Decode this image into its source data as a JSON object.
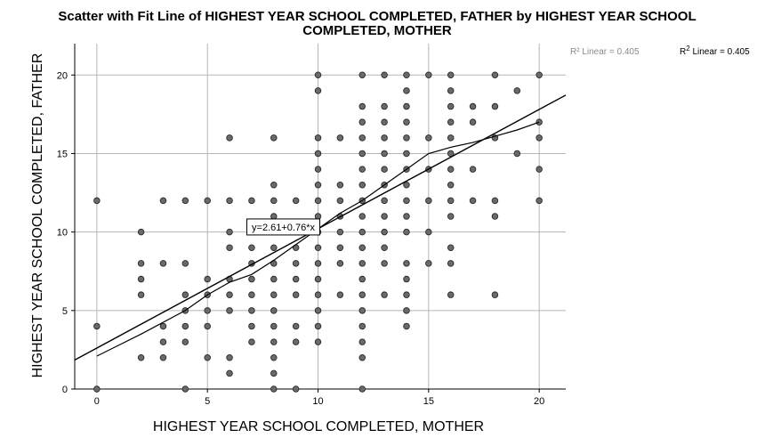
{
  "chart_data": {
    "type": "scatter",
    "title_line1": "Scatter with Fit Line of HIGHEST YEAR SCHOOL COMPLETED, FATHER by HIGHEST YEAR SCHOOL",
    "title_line2": "COMPLETED, MOTHER",
    "xlabel": "HIGHEST YEAR SCHOOL COMPLETED, MOTHER",
    "ylabel": "HIGHEST YEAR SCHOOL COMPLETED, FATHER",
    "xlim": [
      -1,
      21.2
    ],
    "ylim": [
      0,
      22
    ],
    "x_ticks": [
      0,
      5,
      10,
      15,
      20
    ],
    "y_ticks": [
      0,
      5,
      10,
      15,
      20
    ],
    "grid": true,
    "legend": {
      "faint_label": "R² Linear = 0.405",
      "label_prefix": "R",
      "label_sup": "2",
      "label_suffix": " Linear = 0.405",
      "position": "top-right"
    },
    "fit_line": {
      "equation_label": "y=2.61+0.76*x",
      "intercept": 2.61,
      "slope": 0.76,
      "label_at_x": 10
    },
    "loess": {
      "x": [
        0,
        2,
        4,
        5,
        6,
        7,
        8,
        9,
        10,
        11,
        12,
        13,
        14,
        15,
        16,
        17,
        18,
        19,
        20
      ],
      "y": [
        2.1,
        3.5,
        5.0,
        6.0,
        6.8,
        7.3,
        8.2,
        9.2,
        10.2,
        11.2,
        12.0,
        13.0,
        14.0,
        15.0,
        15.4,
        15.7,
        16.1,
        16.5,
        17.0
      ]
    },
    "points": [
      [
        0,
        0
      ],
      [
        0,
        4
      ],
      [
        0,
        12
      ],
      [
        2,
        2
      ],
      [
        2,
        6
      ],
      [
        2,
        7
      ],
      [
        2,
        8
      ],
      [
        2,
        10
      ],
      [
        3,
        2
      ],
      [
        3,
        3
      ],
      [
        3,
        4
      ],
      [
        3,
        8
      ],
      [
        3,
        12
      ],
      [
        4,
        0
      ],
      [
        4,
        3
      ],
      [
        4,
        4
      ],
      [
        4,
        5
      ],
      [
        4,
        6
      ],
      [
        4,
        8
      ],
      [
        4,
        12
      ],
      [
        5,
        2
      ],
      [
        5,
        4
      ],
      [
        5,
        5
      ],
      [
        5,
        6
      ],
      [
        5,
        7
      ],
      [
        5,
        12
      ],
      [
        6,
        1
      ],
      [
        6,
        2
      ],
      [
        6,
        5
      ],
      [
        6,
        6
      ],
      [
        6,
        7
      ],
      [
        6,
        9
      ],
      [
        6,
        10
      ],
      [
        6,
        12
      ],
      [
        6,
        16
      ],
      [
        7,
        3
      ],
      [
        7,
        4
      ],
      [
        7,
        5
      ],
      [
        7,
        6
      ],
      [
        7,
        7
      ],
      [
        7,
        8
      ],
      [
        7,
        9
      ],
      [
        7,
        10
      ],
      [
        7,
        12
      ],
      [
        8,
        0
      ],
      [
        8,
        1
      ],
      [
        8,
        2
      ],
      [
        8,
        3
      ],
      [
        8,
        4
      ],
      [
        8,
        5
      ],
      [
        8,
        6
      ],
      [
        8,
        7
      ],
      [
        8,
        8
      ],
      [
        8,
        9
      ],
      [
        8,
        10
      ],
      [
        8,
        11
      ],
      [
        8,
        12
      ],
      [
        8,
        13
      ],
      [
        8,
        16
      ],
      [
        9,
        0
      ],
      [
        9,
        3
      ],
      [
        9,
        4
      ],
      [
        9,
        6
      ],
      [
        9,
        7
      ],
      [
        9,
        8
      ],
      [
        9,
        9
      ],
      [
        9,
        10
      ],
      [
        9,
        12
      ],
      [
        10,
        3
      ],
      [
        10,
        4
      ],
      [
        10,
        5
      ],
      [
        10,
        6
      ],
      [
        10,
        7
      ],
      [
        10,
        8
      ],
      [
        10,
        9
      ],
      [
        10,
        10
      ],
      [
        10,
        11
      ],
      [
        10,
        12
      ],
      [
        10,
        13
      ],
      [
        10,
        14
      ],
      [
        10,
        15
      ],
      [
        10,
        16
      ],
      [
        10,
        19
      ],
      [
        10,
        20
      ],
      [
        11,
        6
      ],
      [
        11,
        8
      ],
      [
        11,
        9
      ],
      [
        11,
        10
      ],
      [
        11,
        11
      ],
      [
        11,
        12
      ],
      [
        11,
        13
      ],
      [
        11,
        16
      ],
      [
        12,
        0
      ],
      [
        12,
        2
      ],
      [
        12,
        3
      ],
      [
        12,
        4
      ],
      [
        12,
        5
      ],
      [
        12,
        6
      ],
      [
        12,
        7
      ],
      [
        12,
        8
      ],
      [
        12,
        9
      ],
      [
        12,
        10
      ],
      [
        12,
        11
      ],
      [
        12,
        12
      ],
      [
        12,
        13
      ],
      [
        12,
        14
      ],
      [
        12,
        15
      ],
      [
        12,
        16
      ],
      [
        12,
        17
      ],
      [
        12,
        18
      ],
      [
        12,
        20
      ],
      [
        13,
        6
      ],
      [
        13,
        8
      ],
      [
        13,
        9
      ],
      [
        13,
        10
      ],
      [
        13,
        11
      ],
      [
        13,
        12
      ],
      [
        13,
        13
      ],
      [
        13,
        14
      ],
      [
        13,
        15
      ],
      [
        13,
        16
      ],
      [
        13,
        17
      ],
      [
        13,
        18
      ],
      [
        13,
        20
      ],
      [
        14,
        4
      ],
      [
        14,
        5
      ],
      [
        14,
        6
      ],
      [
        14,
        7
      ],
      [
        14,
        8
      ],
      [
        14,
        10
      ],
      [
        14,
        11
      ],
      [
        14,
        12
      ],
      [
        14,
        13
      ],
      [
        14,
        14
      ],
      [
        14,
        15
      ],
      [
        14,
        16
      ],
      [
        14,
        17
      ],
      [
        14,
        18
      ],
      [
        14,
        19
      ],
      [
        14,
        20
      ],
      [
        15,
        8
      ],
      [
        15,
        10
      ],
      [
        15,
        12
      ],
      [
        15,
        14
      ],
      [
        15,
        16
      ],
      [
        15,
        20
      ],
      [
        16,
        6
      ],
      [
        16,
        8
      ],
      [
        16,
        9
      ],
      [
        16,
        11
      ],
      [
        16,
        12
      ],
      [
        16,
        13
      ],
      [
        16,
        14
      ],
      [
        16,
        15
      ],
      [
        16,
        16
      ],
      [
        16,
        17
      ],
      [
        16,
        18
      ],
      [
        16,
        19
      ],
      [
        16,
        20
      ],
      [
        17,
        12
      ],
      [
        17,
        14
      ],
      [
        17,
        17
      ],
      [
        17,
        18
      ],
      [
        18,
        6
      ],
      [
        18,
        11
      ],
      [
        18,
        12
      ],
      [
        18,
        16
      ],
      [
        18,
        18
      ],
      [
        18,
        20
      ],
      [
        19,
        15
      ],
      [
        19,
        19
      ],
      [
        20,
        12
      ],
      [
        20,
        14
      ],
      [
        20,
        16
      ],
      [
        20,
        17
      ],
      [
        20,
        20
      ]
    ]
  }
}
